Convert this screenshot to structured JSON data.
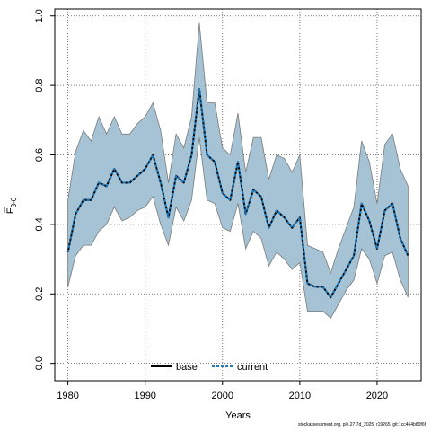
{
  "chart_data": {
    "type": "area",
    "xlabel": "Years",
    "ylabel": "F",
    "ylabel_subscript": "3-6",
    "xlim": [
      1978.3,
      2025.7
    ],
    "ylim": [
      -0.05,
      1.02
    ],
    "x_ticks": [
      1980,
      1990,
      2000,
      2010,
      2020
    ],
    "y_ticks": [
      0.0,
      0.2,
      0.4,
      0.6,
      0.8,
      1.0
    ],
    "x_tick_labels": [
      "1980",
      "1990",
      "2000",
      "2010",
      "2020"
    ],
    "y_tick_labels": [
      "0.0",
      "0.2",
      "0.4",
      "0.6",
      "0.8",
      "1.0"
    ],
    "grid": true,
    "legend_position": "bottom-center",
    "x": [
      1980,
      1981,
      1982,
      1983,
      1984,
      1985,
      1986,
      1987,
      1988,
      1989,
      1990,
      1991,
      1992,
      1993,
      1994,
      1995,
      1996,
      1997,
      1998,
      1999,
      2000,
      2001,
      2002,
      2003,
      2004,
      2005,
      2006,
      2007,
      2008,
      2009,
      2010,
      2011,
      2012,
      2013,
      2014,
      2015,
      2016,
      2017,
      2018,
      2019,
      2020,
      2021,
      2022,
      2023,
      2024
    ],
    "series": [
      {
        "name": "base",
        "style": "solid",
        "color": "#000000",
        "values": [
          0.32,
          0.43,
          0.47,
          0.47,
          0.52,
          0.51,
          0.56,
          0.52,
          0.52,
          0.54,
          0.56,
          0.6,
          0.52,
          0.42,
          0.54,
          0.52,
          0.6,
          0.79,
          0.6,
          0.58,
          0.49,
          0.47,
          0.58,
          0.43,
          0.5,
          0.48,
          0.39,
          0.44,
          0.42,
          0.39,
          0.42,
          0.23,
          0.22,
          0.22,
          0.19,
          0.23,
          0.27,
          0.31,
          0.46,
          0.41,
          0.33,
          0.44,
          0.46,
          0.36,
          0.31
        ]
      },
      {
        "name": "current",
        "style": "dashed",
        "color": "#1a7abf",
        "values": [
          0.32,
          0.43,
          0.47,
          0.47,
          0.52,
          0.51,
          0.56,
          0.52,
          0.52,
          0.54,
          0.56,
          0.6,
          0.52,
          0.42,
          0.54,
          0.52,
          0.6,
          0.79,
          0.6,
          0.58,
          0.49,
          0.47,
          0.58,
          0.43,
          0.5,
          0.48,
          0.39,
          0.44,
          0.42,
          0.39,
          0.42,
          0.23,
          0.22,
          0.22,
          0.19,
          0.23,
          0.27,
          0.31,
          0.46,
          0.41,
          0.33,
          0.44,
          0.46,
          0.36,
          0.31
        ]
      }
    ],
    "band": {
      "color": "#a5c3d4",
      "edge_color": "#7b7b7b",
      "upper": [
        0.47,
        0.61,
        0.67,
        0.64,
        0.71,
        0.66,
        0.71,
        0.66,
        0.66,
        0.69,
        0.71,
        0.75,
        0.67,
        0.52,
        0.66,
        0.62,
        0.71,
        0.98,
        0.75,
        0.75,
        0.62,
        0.6,
        0.72,
        0.55,
        0.65,
        0.65,
        0.53,
        0.6,
        0.59,
        0.55,
        0.6,
        0.34,
        0.33,
        0.32,
        0.26,
        0.33,
        0.39,
        0.45,
        0.64,
        0.58,
        0.46,
        0.63,
        0.66,
        0.56,
        0.51
      ],
      "lower": [
        0.22,
        0.31,
        0.34,
        0.34,
        0.38,
        0.4,
        0.45,
        0.41,
        0.42,
        0.44,
        0.45,
        0.48,
        0.4,
        0.34,
        0.45,
        0.41,
        0.47,
        0.65,
        0.47,
        0.46,
        0.39,
        0.38,
        0.46,
        0.33,
        0.38,
        0.36,
        0.28,
        0.32,
        0.3,
        0.27,
        0.29,
        0.15,
        0.15,
        0.15,
        0.13,
        0.17,
        0.21,
        0.24,
        0.33,
        0.3,
        0.23,
        0.31,
        0.32,
        0.24,
        0.19
      ]
    }
  },
  "footer_text": "stockassessment.org, ple.27.7d_2025, r19265, git:1cc464b80f6f"
}
